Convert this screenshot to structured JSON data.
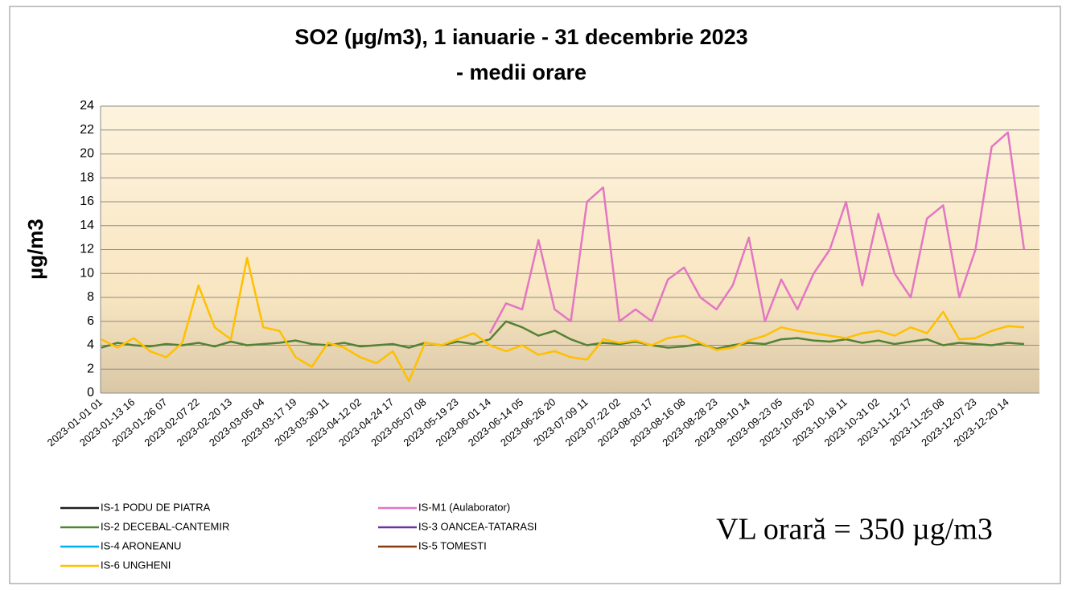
{
  "chart_data": {
    "type": "line",
    "title": "SO2 (µg/m3), 1 ianuarie - 31 decembrie 2023",
    "subtitle": "- medii orare",
    "y_label": "µg/m3",
    "annotation": "VL orară = 350 µg/m3",
    "categories": [
      "2023-01-01 01",
      null,
      "2023-01-13 16",
      null,
      "2023-01-26 07",
      null,
      "2023-02-07 22",
      null,
      "2023-02-20 13",
      null,
      "2023-03-05 04",
      null,
      "2023-03-17 19",
      null,
      "2023-03-30 11",
      null,
      "2023-04-12 02",
      null,
      "2023-04-24 17",
      null,
      "2023-05-07 08",
      null,
      "2023-05-19 23",
      null,
      "2023-06-01 14",
      null,
      "2023-06-14 05",
      null,
      "2023-06-26 20",
      null,
      "2023-07-09 11",
      null,
      "2023-07-22 02",
      null,
      "2023-08-03 17",
      null,
      "2023-08-16 08",
      null,
      "2023-08-28 23",
      null,
      "2023-09-10 14",
      null,
      "2023-09-23 05",
      null,
      "2023-10-05 20",
      null,
      "2023-10-18 11",
      null,
      "2023-10-31 02",
      null,
      "2023-11-12 17",
      null,
      "2023-11-25 08",
      null,
      "2023-12-07 23",
      null,
      "2023-12-20 14",
      null
    ],
    "series": [
      {
        "name": "IS-1 PODU DE PIATRA",
        "color": "#1f1f1f",
        "values": [
          null,
          null,
          null,
          null,
          null,
          null,
          null,
          null,
          null,
          null,
          null,
          null,
          null,
          null,
          null,
          null,
          null,
          null,
          null,
          null,
          null,
          null,
          null,
          null,
          null,
          null,
          null,
          null,
          null,
          null,
          null,
          null,
          null,
          null,
          null,
          null,
          null,
          null,
          null,
          null,
          null,
          null,
          null,
          null,
          null,
          null,
          null,
          null,
          null,
          null,
          null,
          null,
          null,
          null,
          null,
          null,
          null,
          null
        ]
      },
      {
        "name": "IS-M1 (Aulaborator)",
        "color": "#e377c2",
        "values": [
          null,
          null,
          null,
          null,
          null,
          null,
          null,
          null,
          null,
          null,
          null,
          null,
          null,
          null,
          null,
          null,
          null,
          null,
          null,
          null,
          null,
          null,
          null,
          null,
          5,
          7.5,
          7,
          12.8,
          7,
          6,
          16,
          17.2,
          6,
          7,
          6,
          9.5,
          10.5,
          8,
          7,
          9,
          13,
          6,
          9.5,
          7,
          10,
          12,
          16,
          9,
          15,
          10,
          8,
          14.6,
          15.7,
          8,
          12,
          20.6,
          21.8,
          12
        ]
      },
      {
        "name": "IS-2 DECEBAL-CANTEMIR",
        "color": "#548235",
        "values": [
          3.8,
          4.2,
          4,
          3.9,
          4.1,
          4,
          4.2,
          3.9,
          4.3,
          4,
          4.1,
          4.2,
          4.4,
          4.1,
          4,
          4.2,
          3.9,
          4,
          4.1,
          3.8,
          4.2,
          4,
          4.3,
          4.1,
          4.5,
          6,
          5.5,
          4.8,
          5.2,
          4.5,
          4,
          4.2,
          4.1,
          4.3,
          4,
          3.8,
          3.9,
          4.1,
          3.7,
          4,
          4.2,
          4.1,
          4.5,
          4.6,
          4.4,
          4.3,
          4.5,
          4.2,
          4.4,
          4.1,
          4.3,
          4.5,
          4,
          4.2,
          4.1,
          4,
          4.2,
          4.1
        ]
      },
      {
        "name": "IS-3 OANCEA-TATARASI",
        "color": "#7030a0",
        "values": [
          null,
          null,
          null,
          null,
          null,
          null,
          null,
          null,
          null,
          null,
          null,
          null,
          null,
          null,
          null,
          null,
          null,
          null,
          null,
          null,
          null,
          null,
          null,
          null,
          null,
          null,
          null,
          null,
          null,
          null,
          null,
          null,
          null,
          null,
          null,
          null,
          null,
          null,
          null,
          null,
          null,
          null,
          null,
          null,
          null,
          null,
          null,
          null,
          null,
          null,
          null,
          null,
          null,
          null,
          null,
          null,
          null,
          null
        ]
      },
      {
        "name": "IS-4 ARONEANU",
        "color": "#00b0f0",
        "values": [
          null,
          null,
          null,
          null,
          null,
          null,
          null,
          null,
          null,
          null,
          null,
          null,
          null,
          null,
          null,
          null,
          null,
          null,
          null,
          null,
          null,
          null,
          null,
          null,
          null,
          null,
          null,
          null,
          null,
          null,
          null,
          null,
          null,
          null,
          null,
          null,
          null,
          null,
          null,
          null,
          null,
          null,
          null,
          null,
          null,
          null,
          null,
          null,
          null,
          null,
          null,
          null,
          null,
          null,
          null,
          null,
          null,
          null
        ]
      },
      {
        "name": "IS-5 TOMESTI",
        "color": "#843c0c",
        "values": [
          null,
          null,
          null,
          null,
          null,
          null,
          null,
          null,
          null,
          null,
          null,
          null,
          null,
          null,
          null,
          null,
          null,
          null,
          null,
          null,
          null,
          null,
          null,
          null,
          null,
          null,
          null,
          null,
          null,
          null,
          null,
          null,
          null,
          null,
          null,
          null,
          null,
          null,
          null,
          null,
          null,
          null,
          null,
          null,
          null,
          null,
          null,
          null,
          null,
          null,
          null,
          null,
          null,
          null,
          null,
          null,
          null,
          null
        ]
      },
      {
        "name": "IS-6 UNGHENI",
        "color": "#ffc000",
        "values": [
          4.5,
          3.8,
          4.6,
          3.5,
          3,
          4.2,
          9,
          5.5,
          4.5,
          11.3,
          5.5,
          5.2,
          3,
          2.2,
          4.2,
          3.8,
          3,
          2.5,
          3.5,
          1,
          4.2,
          4,
          4.5,
          5,
          4,
          3.5,
          4,
          3.2,
          3.5,
          3,
          2.8,
          4.5,
          4.2,
          4.4,
          4,
          4.6,
          4.8,
          4.2,
          3.6,
          3.8,
          4.4,
          4.8,
          5.5,
          5.2,
          5,
          4.8,
          4.6,
          5,
          5.2,
          4.8,
          5.5,
          5,
          6.8,
          4.5,
          4.6,
          5.2,
          5.6,
          5.5
        ]
      }
    ],
    "ylim": [
      0,
      24
    ],
    "yticks": [
      0,
      2,
      4,
      6,
      8,
      10,
      12,
      14,
      16,
      18,
      20,
      22,
      24
    ],
    "grid": true
  }
}
